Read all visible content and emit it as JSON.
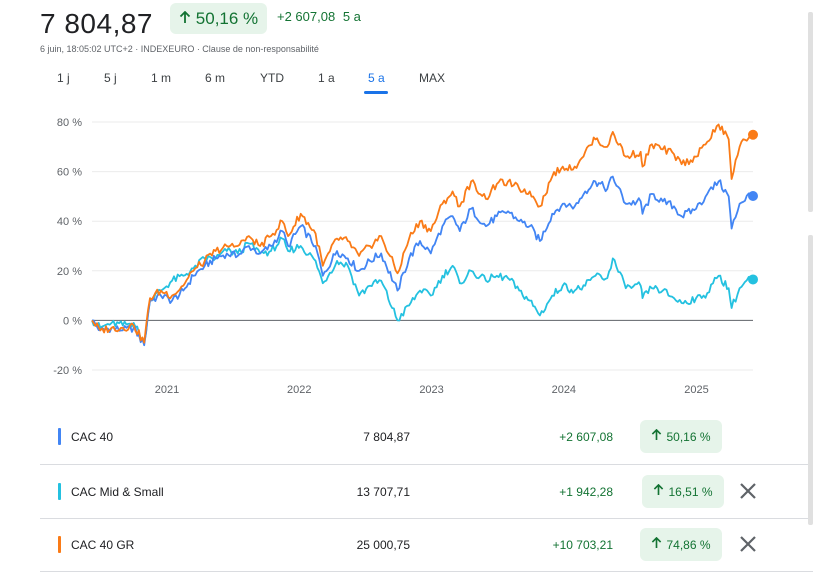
{
  "header": {
    "price": "7 804,87",
    "change_pct": "50,16 %",
    "change_abs": "+2 607,08",
    "period": "5 a",
    "meta": "6 juin, 18:05:02 UTC+2 · INDEXEURO · Clause de non-responsabilité"
  },
  "tabs": [
    {
      "label": "1 j"
    },
    {
      "label": "5 j"
    },
    {
      "label": "1 m"
    },
    {
      "label": "6 m"
    },
    {
      "label": "YTD"
    },
    {
      "label": "1 a"
    },
    {
      "label": "5 a",
      "active": true
    },
    {
      "label": "MAX"
    }
  ],
  "colors": {
    "cac40": "#4285f4",
    "midsmall": "#24c1e0",
    "cac40gr": "#fa7b17",
    "positive": "#137333",
    "positive_bg": "#e6f4ea"
  },
  "table": {
    "rows": [
      {
        "name": "CAC 40",
        "value": "7 804,87",
        "change": "+2 607,08",
        "pct": "50,16 %",
        "color": "#4285f4",
        "removable": false
      },
      {
        "name": "CAC Mid & Small",
        "value": "13 707,71",
        "change": "+1 942,28",
        "pct": "16,51 %",
        "color": "#24c1e0",
        "removable": true
      },
      {
        "name": "CAC 40 GR",
        "value": "25 000,75",
        "change": "+10 703,21",
        "pct": "74,86 %",
        "color": "#fa7b17",
        "removable": true
      }
    ]
  },
  "chart_data": {
    "type": "line",
    "x_start": "2020-06-08",
    "x_end": "2025-06-06",
    "x_ticks": [
      "2021",
      "2022",
      "2023",
      "2024",
      "2025"
    ],
    "y_ticks": [
      "-20 %",
      "0 %",
      "20 %",
      "40 %",
      "60 %",
      "80 %"
    ],
    "ylim": [
      -20,
      80
    ],
    "y_unit": "%",
    "grid": true,
    "series": [
      {
        "name": "CAC 40",
        "color": "#4285f4",
        "points": [
          [
            "2020-06-08",
            0
          ],
          [
            "2020-07-01",
            -4
          ],
          [
            "2020-08-01",
            -3
          ],
          [
            "2020-09-01",
            -4
          ],
          [
            "2020-10-01",
            -3
          ],
          [
            "2020-10-30",
            -10
          ],
          [
            "2020-11-15",
            8
          ],
          [
            "2020-12-15",
            10
          ],
          [
            "2021-01-15",
            8
          ],
          [
            "2021-02-15",
            12
          ],
          [
            "2021-03-15",
            18
          ],
          [
            "2021-04-15",
            22
          ],
          [
            "2021-05-15",
            25
          ],
          [
            "2021-06-15",
            27
          ],
          [
            "2021-07-15",
            26
          ],
          [
            "2021-08-15",
            30
          ],
          [
            "2021-09-15",
            27
          ],
          [
            "2021-10-15",
            30
          ],
          [
            "2021-11-15",
            36
          ],
          [
            "2021-12-01",
            30
          ],
          [
            "2022-01-05",
            38
          ],
          [
            "2022-02-15",
            30
          ],
          [
            "2022-03-07",
            18
          ],
          [
            "2022-04-15",
            28
          ],
          [
            "2022-05-15",
            25
          ],
          [
            "2022-06-15",
            20
          ],
          [
            "2022-07-15",
            24
          ],
          [
            "2022-08-15",
            27
          ],
          [
            "2022-09-29",
            12
          ],
          [
            "2022-10-31",
            25
          ],
          [
            "2022-11-30",
            32
          ],
          [
            "2022-12-30",
            27
          ],
          [
            "2023-01-31",
            38
          ],
          [
            "2023-02-28",
            42
          ],
          [
            "2023-03-20",
            36
          ],
          [
            "2023-04-20",
            45
          ],
          [
            "2023-05-31",
            38
          ],
          [
            "2023-06-30",
            42
          ],
          [
            "2023-07-31",
            44
          ],
          [
            "2023-08-31",
            40
          ],
          [
            "2023-09-29",
            38
          ],
          [
            "2023-10-27",
            32
          ],
          [
            "2023-11-30",
            43
          ],
          [
            "2023-12-29",
            47
          ],
          [
            "2024-01-31",
            46
          ],
          [
            "2024-02-29",
            52
          ],
          [
            "2024-03-28",
            56
          ],
          [
            "2024-04-30",
            53
          ],
          [
            "2024-05-15",
            58
          ],
          [
            "2024-06-20",
            47
          ],
          [
            "2024-07-31",
            48
          ],
          [
            "2024-08-05",
            43
          ],
          [
            "2024-08-31",
            51
          ],
          [
            "2024-09-30",
            48
          ],
          [
            "2024-10-31",
            46
          ],
          [
            "2024-11-21",
            42
          ],
          [
            "2024-12-31",
            45
          ],
          [
            "2025-01-31",
            51
          ],
          [
            "2025-03-03",
            56
          ],
          [
            "2025-03-31",
            50
          ],
          [
            "2025-04-08",
            37
          ],
          [
            "2025-04-30",
            47
          ],
          [
            "2025-05-30",
            51
          ],
          [
            "2025-06-06",
            50.16
          ]
        ]
      },
      {
        "name": "CAC Mid & Small",
        "color": "#24c1e0",
        "points": [
          [
            "2020-06-08",
            0
          ],
          [
            "2020-07-01",
            -3
          ],
          [
            "2020-08-01",
            -1
          ],
          [
            "2020-09-01",
            -2
          ],
          [
            "2020-10-01",
            -1
          ],
          [
            "2020-10-30",
            -9
          ],
          [
            "2020-11-15",
            8
          ],
          [
            "2020-12-15",
            12
          ],
          [
            "2021-01-15",
            16
          ],
          [
            "2021-02-15",
            18
          ],
          [
            "2021-03-15",
            21
          ],
          [
            "2021-04-15",
            25
          ],
          [
            "2021-05-15",
            25
          ],
          [
            "2021-06-15",
            28
          ],
          [
            "2021-07-15",
            27
          ],
          [
            "2021-08-15",
            31
          ],
          [
            "2021-09-15",
            27
          ],
          [
            "2021-10-15",
            28
          ],
          [
            "2021-11-15",
            33
          ],
          [
            "2021-12-01",
            28
          ],
          [
            "2022-01-05",
            30
          ],
          [
            "2022-02-15",
            24
          ],
          [
            "2022-03-07",
            15
          ],
          [
            "2022-04-15",
            24
          ],
          [
            "2022-05-15",
            22
          ],
          [
            "2022-06-15",
            10
          ],
          [
            "2022-07-15",
            14
          ],
          [
            "2022-08-15",
            16
          ],
          [
            "2022-09-29",
            0
          ],
          [
            "2022-10-31",
            6
          ],
          [
            "2022-11-30",
            12
          ],
          [
            "2022-12-30",
            10
          ],
          [
            "2023-01-31",
            18
          ],
          [
            "2023-02-28",
            22
          ],
          [
            "2023-03-20",
            15
          ],
          [
            "2023-04-20",
            20
          ],
          [
            "2023-05-31",
            16
          ],
          [
            "2023-06-30",
            18
          ],
          [
            "2023-07-31",
            17
          ],
          [
            "2023-08-31",
            12
          ],
          [
            "2023-09-29",
            8
          ],
          [
            "2023-10-27",
            2
          ],
          [
            "2023-11-30",
            10
          ],
          [
            "2023-12-29",
            14
          ],
          [
            "2024-01-31",
            12
          ],
          [
            "2024-02-29",
            14
          ],
          [
            "2024-03-28",
            18
          ],
          [
            "2024-04-30",
            17
          ],
          [
            "2024-05-15",
            25
          ],
          [
            "2024-06-20",
            13
          ],
          [
            "2024-07-31",
            14
          ],
          [
            "2024-08-05",
            9
          ],
          [
            "2024-08-31",
            13
          ],
          [
            "2024-09-30",
            12
          ],
          [
            "2024-10-31",
            9
          ],
          [
            "2024-11-21",
            7
          ],
          [
            "2024-12-31",
            9
          ],
          [
            "2025-01-31",
            11
          ],
          [
            "2025-03-03",
            18
          ],
          [
            "2025-03-31",
            13
          ],
          [
            "2025-04-08",
            5
          ],
          [
            "2025-04-30",
            13
          ],
          [
            "2025-05-30",
            17
          ],
          [
            "2025-06-06",
            16.51
          ]
        ]
      },
      {
        "name": "CAC 40 GR",
        "color": "#fa7b17",
        "points": [
          [
            "2020-06-08",
            0
          ],
          [
            "2020-07-01",
            -4
          ],
          [
            "2020-08-01",
            -3
          ],
          [
            "2020-09-01",
            -3
          ],
          [
            "2020-10-01",
            -2
          ],
          [
            "2020-10-30",
            -9
          ],
          [
            "2020-11-15",
            9
          ],
          [
            "2020-12-15",
            12
          ],
          [
            "2021-01-15",
            10
          ],
          [
            "2021-02-15",
            14
          ],
          [
            "2021-03-15",
            20
          ],
          [
            "2021-04-15",
            24
          ],
          [
            "2021-05-15",
            28
          ],
          [
            "2021-06-15",
            30
          ],
          [
            "2021-07-15",
            30
          ],
          [
            "2021-08-15",
            34
          ],
          [
            "2021-09-15",
            30
          ],
          [
            "2021-10-15",
            34
          ],
          [
            "2021-11-15",
            40
          ],
          [
            "2021-12-01",
            34
          ],
          [
            "2022-01-05",
            43
          ],
          [
            "2022-02-15",
            35
          ],
          [
            "2022-03-07",
            22
          ],
          [
            "2022-04-15",
            33
          ],
          [
            "2022-05-15",
            32
          ],
          [
            "2022-06-15",
            26
          ],
          [
            "2022-07-15",
            30
          ],
          [
            "2022-08-15",
            34
          ],
          [
            "2022-09-29",
            19
          ],
          [
            "2022-10-31",
            33
          ],
          [
            "2022-11-30",
            40
          ],
          [
            "2022-12-30",
            36
          ],
          [
            "2023-01-31",
            47
          ],
          [
            "2023-02-28",
            52
          ],
          [
            "2023-03-20",
            46
          ],
          [
            "2023-04-20",
            56
          ],
          [
            "2023-05-31",
            49
          ],
          [
            "2023-06-30",
            55
          ],
          [
            "2023-07-31",
            56
          ],
          [
            "2023-08-31",
            53
          ],
          [
            "2023-09-29",
            52
          ],
          [
            "2023-10-27",
            46
          ],
          [
            "2023-11-30",
            58
          ],
          [
            "2023-12-29",
            62
          ],
          [
            "2024-01-31",
            62
          ],
          [
            "2024-02-29",
            68
          ],
          [
            "2024-03-28",
            73
          ],
          [
            "2024-04-30",
            70
          ],
          [
            "2024-05-15",
            76
          ],
          [
            "2024-06-20",
            66
          ],
          [
            "2024-07-31",
            68
          ],
          [
            "2024-08-05",
            62
          ],
          [
            "2024-08-31",
            71
          ],
          [
            "2024-09-30",
            69
          ],
          [
            "2024-10-31",
            67
          ],
          [
            "2024-11-21",
            63
          ],
          [
            "2024-12-31",
            66
          ],
          [
            "2025-01-31",
            72
          ],
          [
            "2025-03-03",
            79
          ],
          [
            "2025-03-31",
            73
          ],
          [
            "2025-04-08",
            57
          ],
          [
            "2025-04-30",
            70
          ],
          [
            "2025-05-30",
            75
          ],
          [
            "2025-06-06",
            74.86
          ]
        ]
      }
    ]
  }
}
